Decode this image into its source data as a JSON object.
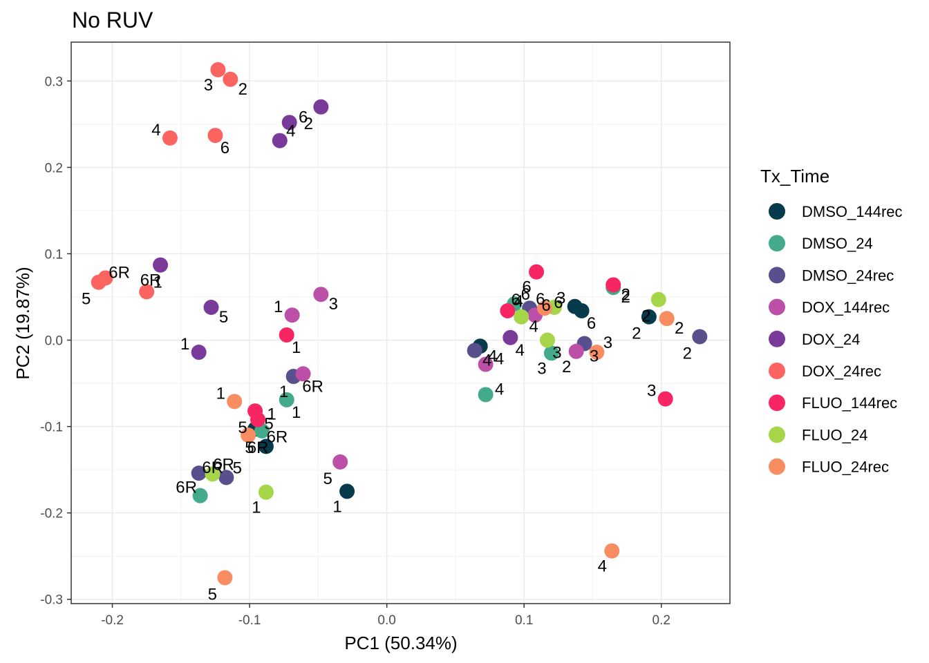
{
  "chart_data": {
    "type": "scatter",
    "title": "No RUV",
    "xlabel": "PC1 (50.34%)",
    "ylabel": "PC2 (19.87%)",
    "xlim": [
      -0.23,
      0.25
    ],
    "ylim": [
      -0.305,
      0.345
    ],
    "x_ticks": [
      -0.2,
      -0.1,
      0.0,
      0.1,
      0.2
    ],
    "x_tick_labels": [
      "-0.2",
      "-0.1",
      "0.0",
      "0.1",
      "0.2"
    ],
    "y_ticks": [
      -0.3,
      -0.2,
      -0.1,
      0.0,
      0.1,
      0.2,
      0.3
    ],
    "y_tick_labels": [
      "-0.3",
      "-0.2",
      "-0.1",
      "0.0",
      "0.1",
      "0.2",
      "0.3"
    ],
    "grid": true,
    "legend_position": "right",
    "legend_title": "Tx_Time",
    "series": [
      {
        "name": "DMSO_144rec",
        "color": "#073b4c",
        "points": [
          {
            "x": -0.088,
            "y": -0.123,
            "label": "6R"
          },
          {
            "x": -0.029,
            "y": -0.175,
            "label": "1"
          },
          {
            "x": 0.068,
            "y": -0.007,
            "label": "4"
          },
          {
            "x": 0.137,
            "y": 0.039,
            "label": "3"
          },
          {
            "x": 0.142,
            "y": 0.034,
            "label": "6"
          },
          {
            "x": 0.191,
            "y": 0.027,
            "label": "2"
          },
          {
            "x": -0.096,
            "y": -0.103,
            "label": "5"
          }
        ]
      },
      {
        "name": "DMSO_24",
        "color": "#43aa8b",
        "points": [
          {
            "x": -0.136,
            "y": -0.18,
            "label": "6R"
          },
          {
            "x": -0.073,
            "y": -0.069,
            "label": "1"
          },
          {
            "x": -0.091,
            "y": -0.105,
            "label": "5"
          },
          {
            "x": 0.072,
            "y": -0.063,
            "label": "4"
          },
          {
            "x": 0.093,
            "y": 0.042,
            "label": "6"
          },
          {
            "x": 0.12,
            "y": -0.015,
            "label": "3"
          },
          {
            "x": 0.165,
            "y": 0.061,
            "label": "2"
          }
        ]
      },
      {
        "name": "DMSO_24rec",
        "color": "#58508d",
        "points": [
          {
            "x": -0.137,
            "y": -0.154,
            "label": "6R"
          },
          {
            "x": -0.117,
            "y": -0.159,
            "label": "5"
          },
          {
            "x": -0.068,
            "y": -0.042,
            "label": "1"
          },
          {
            "x": 0.064,
            "y": -0.012,
            "label": "4"
          },
          {
            "x": 0.104,
            "y": 0.037,
            "label": "6"
          },
          {
            "x": 0.144,
            "y": -0.004,
            "label": "3"
          },
          {
            "x": 0.228,
            "y": 0.004,
            "label": "2"
          }
        ]
      },
      {
        "name": "DOX_144rec",
        "color": "#bc4fa8",
        "points": [
          {
            "x": -0.048,
            "y": 0.053,
            "label": "3"
          },
          {
            "x": -0.069,
            "y": 0.029,
            "label": "1"
          },
          {
            "x": -0.061,
            "y": -0.039,
            "label": "6R"
          },
          {
            "x": -0.034,
            "y": -0.141,
            "label": "5"
          },
          {
            "x": 0.072,
            "y": -0.028,
            "label": "4"
          },
          {
            "x": 0.108,
            "y": 0.029,
            "label": "6"
          },
          {
            "x": 0.138,
            "y": -0.013,
            "label": "2"
          }
        ]
      },
      {
        "name": "DOX_24",
        "color": "#7a3a9a",
        "points": [
          {
            "x": -0.048,
            "y": 0.27,
            "label": "2"
          },
          {
            "x": -0.071,
            "y": 0.252,
            "label": "6"
          },
          {
            "x": -0.078,
            "y": 0.231,
            "label": "4"
          },
          {
            "x": -0.165,
            "y": 0.087,
            "label": "6R"
          },
          {
            "x": -0.128,
            "y": 0.038,
            "label": "5"
          },
          {
            "x": -0.137,
            "y": -0.014,
            "label": "1"
          },
          {
            "x": 0.09,
            "y": 0.003,
            "label": "4"
          }
        ]
      },
      {
        "name": "DOX_24rec",
        "color": "#fb6461",
        "points": [
          {
            "x": -0.123,
            "y": 0.313,
            "label": "3"
          },
          {
            "x": -0.114,
            "y": 0.302,
            "label": "2"
          },
          {
            "x": -0.158,
            "y": 0.234,
            "label": "4"
          },
          {
            "x": -0.125,
            "y": 0.237,
            "label": "6"
          },
          {
            "x": -0.21,
            "y": 0.067,
            "label": "5"
          },
          {
            "x": -0.205,
            "y": 0.072,
            "label": "6R"
          },
          {
            "x": -0.175,
            "y": 0.056,
            "label": "1"
          }
        ]
      },
      {
        "name": "FLUO_144rec",
        "color": "#f72562",
        "points": [
          {
            "x": -0.073,
            "y": 0.006,
            "label": "1"
          },
          {
            "x": -0.096,
            "y": -0.082,
            "label": "5"
          },
          {
            "x": -0.094,
            "y": -0.092,
            "label": "1"
          },
          {
            "x": 0.088,
            "y": 0.034,
            "label": "4"
          },
          {
            "x": 0.109,
            "y": 0.079,
            "label": "6"
          },
          {
            "x": 0.165,
            "y": 0.064,
            "label": "2"
          },
          {
            "x": 0.203,
            "y": -0.068,
            "label": "3"
          }
        ]
      },
      {
        "name": "FLUO_24",
        "color": "#a7d54a",
        "points": [
          {
            "x": -0.127,
            "y": -0.155,
            "label": "6R"
          },
          {
            "x": -0.088,
            "y": -0.176,
            "label": "1"
          },
          {
            "x": 0.098,
            "y": 0.027,
            "label": "4"
          },
          {
            "x": 0.122,
            "y": 0.038,
            "label": "6"
          },
          {
            "x": 0.117,
            "y": 0.0,
            "label": "3"
          },
          {
            "x": 0.198,
            "y": 0.047,
            "label": "2"
          }
        ]
      },
      {
        "name": "FLUO_24rec",
        "color": "#f98c60",
        "points": [
          {
            "x": -0.111,
            "y": -0.071,
            "label": "1"
          },
          {
            "x": -0.101,
            "y": -0.11,
            "label": "6R"
          },
          {
            "x": -0.118,
            "y": -0.275,
            "label": "5"
          },
          {
            "x": 0.115,
            "y": 0.037,
            "label": "6"
          },
          {
            "x": 0.153,
            "y": -0.014,
            "label": "3"
          },
          {
            "x": 0.164,
            "y": -0.244,
            "label": "4"
          },
          {
            "x": 0.204,
            "y": 0.025,
            "label": "2"
          }
        ]
      }
    ]
  }
}
